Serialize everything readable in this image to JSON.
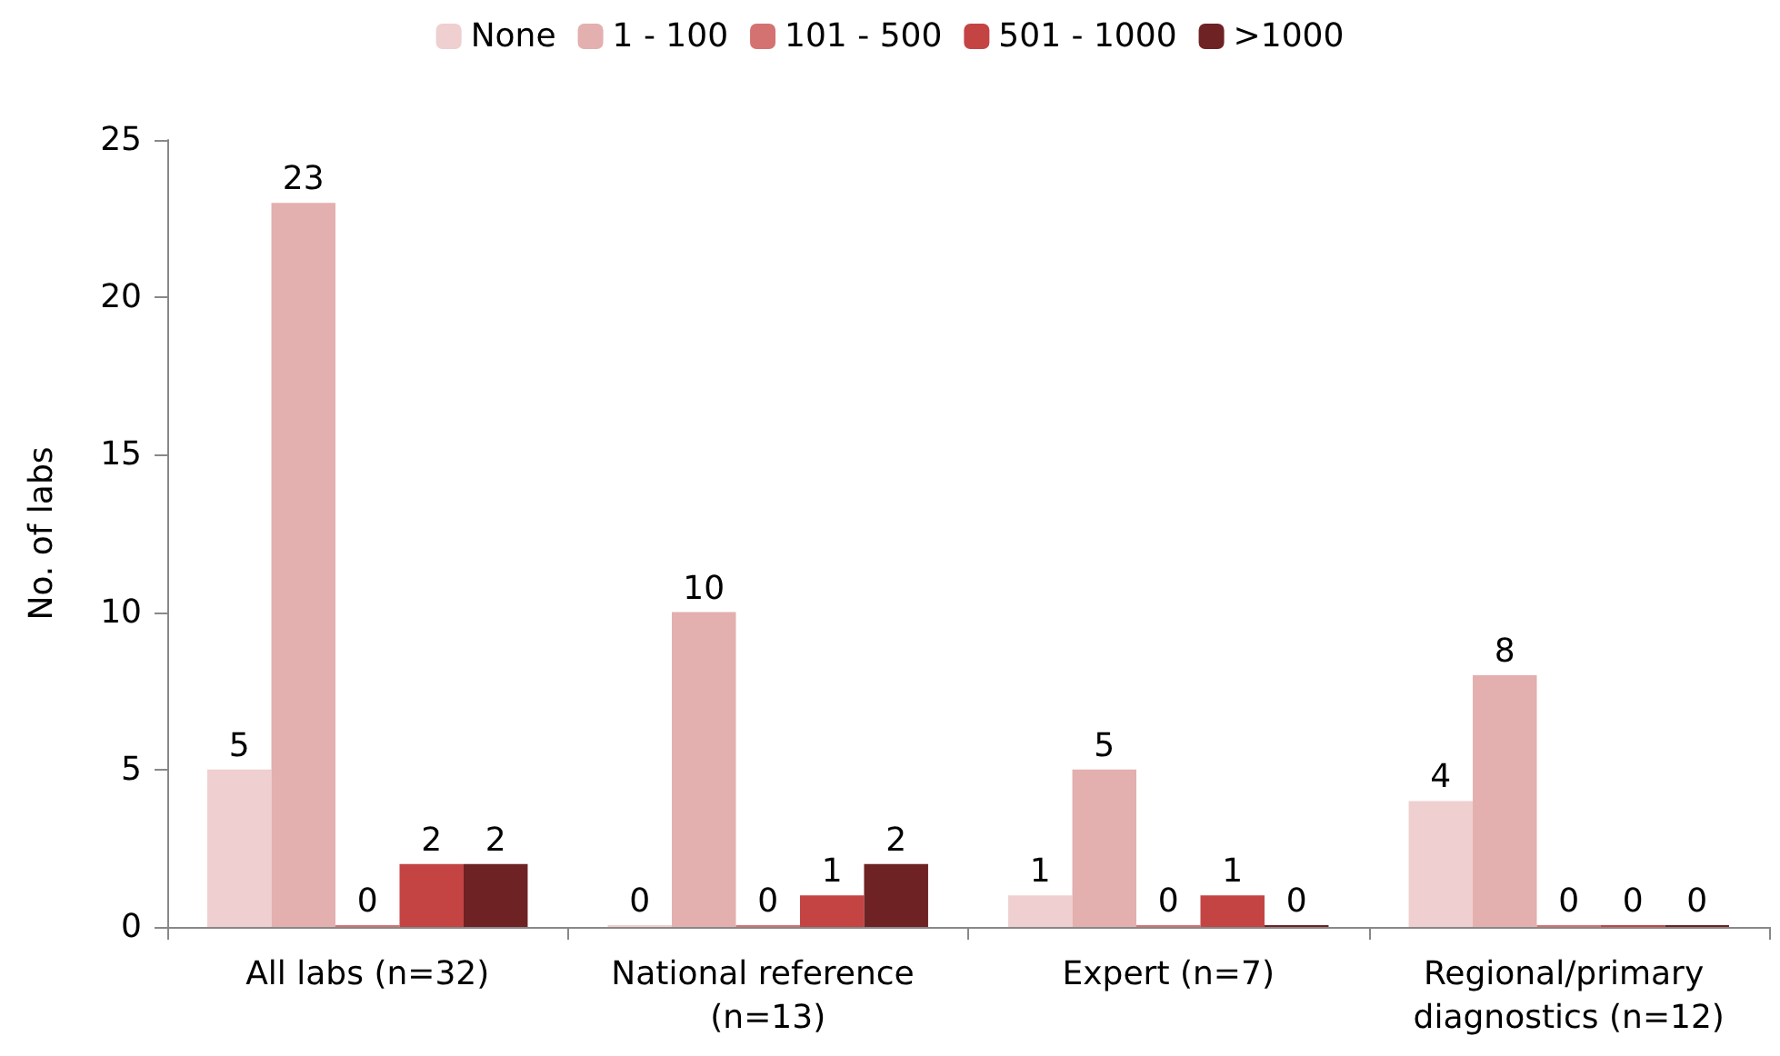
{
  "chart_data": {
    "type": "bar",
    "ylabel": "No. of labs",
    "categories": [
      "All labs (n=32)",
      "National reference (n=13)",
      "Expert (n=7)",
      "Regional/primary diagnostics (n=12)"
    ],
    "series": [
      {
        "name": "None",
        "color": "#efcfcf",
        "values": [
          5,
          0,
          1,
          4
        ]
      },
      {
        "name": "1 - 100",
        "color": "#e3afaf",
        "values": [
          23,
          10,
          5,
          8
        ]
      },
      {
        "name": "101 - 500",
        "color": "#d47272",
        "values": [
          0,
          0,
          0,
          0
        ]
      },
      {
        "name": "501 - 1000",
        "color": "#c44444",
        "values": [
          2,
          1,
          1,
          0
        ]
      },
      {
        "name": ">1000",
        "color": "#6e2224",
        "values": [
          2,
          2,
          0,
          0
        ]
      }
    ],
    "ylim": [
      0,
      25
    ],
    "yticks": [
      0,
      5,
      10,
      15,
      20,
      25
    ],
    "grid": false,
    "legend": "top",
    "data_labels": true
  }
}
